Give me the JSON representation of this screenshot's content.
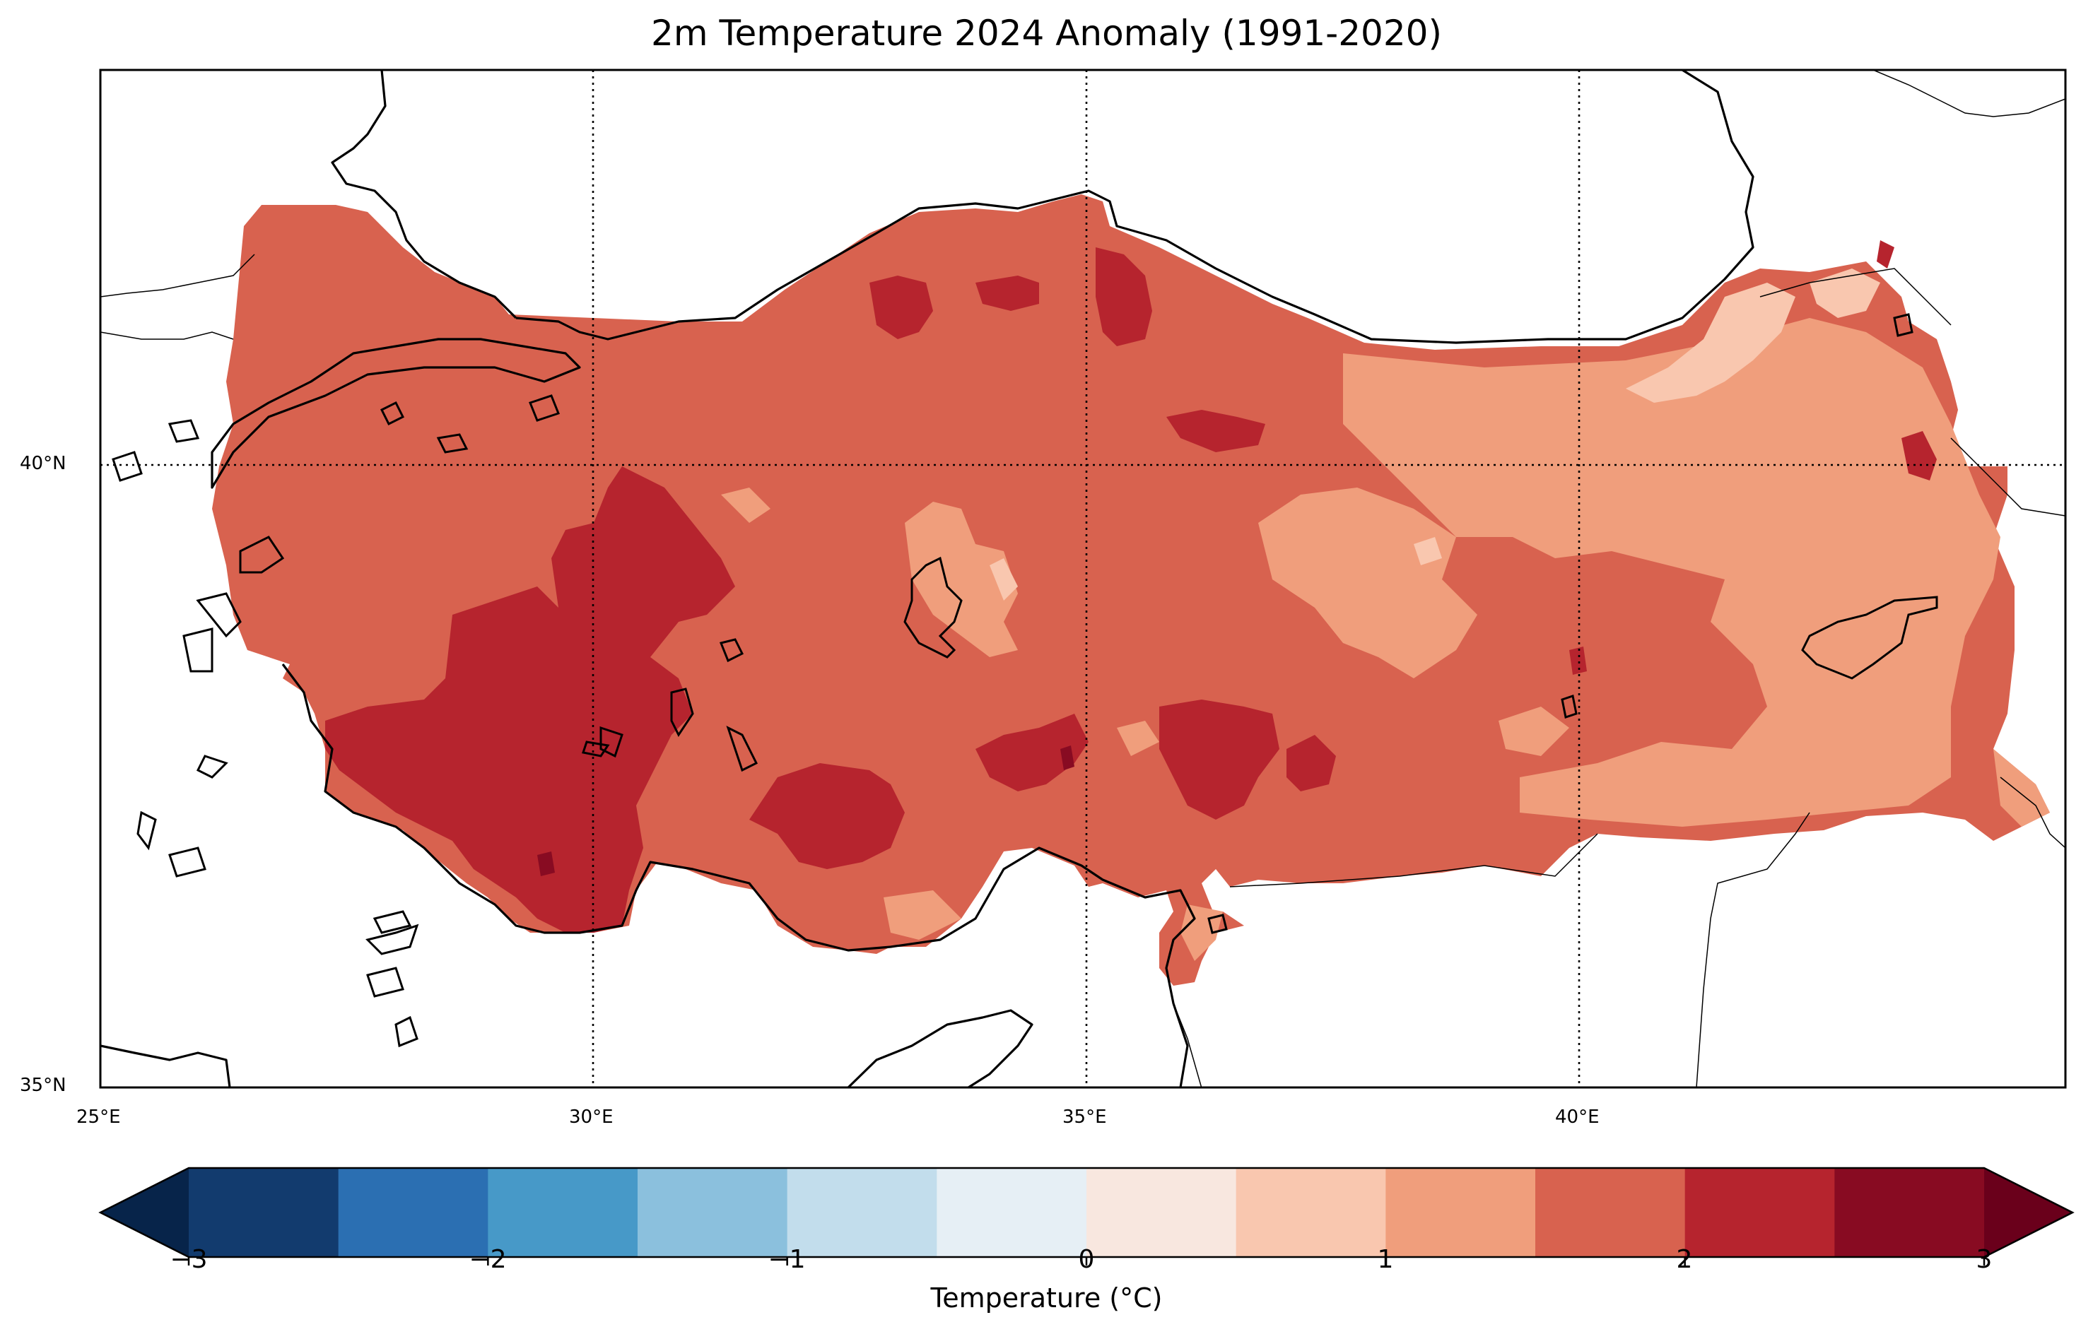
{
  "map": {
    "title": "2m Temperature 2024 Anomaly (1991-2020)",
    "region": "Turkey",
    "variable": "2m temperature anomaly",
    "extent": {
      "lon": [
        25,
        45
      ],
      "lat": [
        35,
        41.5
      ]
    },
    "gridlines": {
      "style": "dotted",
      "lon": [
        30,
        35,
        40
      ],
      "lat": [
        40
      ]
    },
    "lon_ticks": [
      "25°E",
      "30°E",
      "35°E",
      "40°E"
    ],
    "lat_ticks": [
      "40°N",
      "35°N"
    ],
    "colorbar": {
      "label": "Temperature (°C)",
      "ticks": [
        "−3",
        "−2",
        "−1",
        "0",
        "1",
        "2",
        "3"
      ],
      "extend": "both",
      "colormap": "RdBu_r",
      "bounds": [
        -3,
        -2.5,
        -2,
        -1.5,
        -1,
        -0.5,
        0,
        0.5,
        1,
        1.5,
        2,
        2.5,
        3
      ],
      "colors": [
        "#123b6e",
        "#2b6fb2",
        "#4799c8",
        "#8bc0dd",
        "#c2ddec",
        "#e6eff5",
        "#f8e7df",
        "#f9c7af",
        "#f09e7c",
        "#d8624f",
        "#b6242e",
        "#880b22"
      ],
      "under_color": "#07244a",
      "over_color": "#6a001b"
    },
    "field_colors": {
      "background": "#d8624f",
      "cooler": "#f09e7c",
      "coolest": "#f9c7af",
      "warmer": "#b6242e",
      "warmest": "#880b22",
      "coast": "#000000",
      "sea": "#ffffff"
    },
    "dominant_range": "1.5 to 2 °C"
  }
}
